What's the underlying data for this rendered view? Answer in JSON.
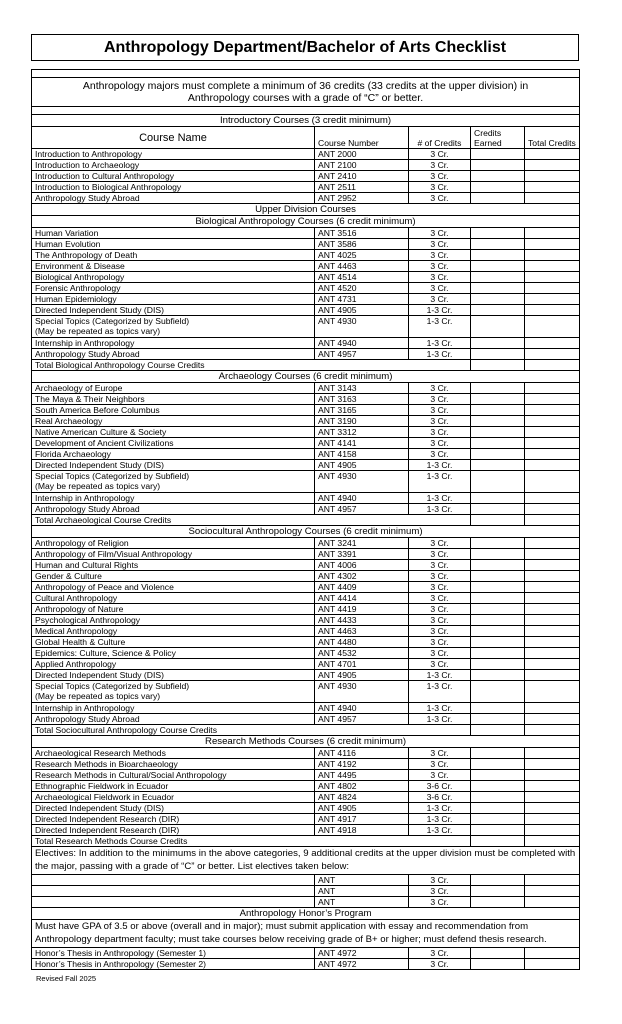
{
  "title": "Anthropology Department/Bachelor of Arts Checklist",
  "intro_text": "Anthropology majors must complete a minimum of 36 credits (33 credits at the upper division) in Anthropology courses with a grade of “C” or better.",
  "columns": {
    "name": "Course Name",
    "number": "Course Number",
    "credits": "# of Credits",
    "earned": "Credits Earned",
    "total": "Total Credits"
  },
  "introductory": {
    "heading": "Introductory Courses (3 credit minimum)",
    "courses": [
      {
        "name": "Introduction to Anthropology",
        "number": "ANT 2000",
        "credits": "3 Cr."
      },
      {
        "name": "Introduction to Archaeology",
        "number": "ANT 2100",
        "credits": "3 Cr."
      },
      {
        "name": "Introduction to Cultural Anthropology",
        "number": "ANT 2410",
        "credits": "3 Cr."
      },
      {
        "name": "Introduction to Biological Anthropology",
        "number": "ANT 2511",
        "credits": "3 Cr."
      },
      {
        "name": "Anthropology Study Abroad",
        "number": "ANT 2952",
        "credits": "3 Cr."
      }
    ]
  },
  "upper_division_heading": "Upper Division Courses",
  "sections": [
    {
      "heading": "Biological Anthropology Courses (6 credit minimum)",
      "courses": [
        {
          "name": "Human Variation",
          "number": "ANT 3516",
          "credits": "3 Cr."
        },
        {
          "name": "Human Evolution",
          "number": "ANT 3586",
          "credits": "3 Cr."
        },
        {
          "name": "The Anthropology of Death",
          "number": "ANT 4025",
          "credits": "3 Cr."
        },
        {
          "name": "Environment & Disease",
          "number": "ANT 4463",
          "credits": "3 Cr."
        },
        {
          "name": "Biological Anthropology",
          "number": "ANT 4514",
          "credits": "3 Cr."
        },
        {
          "name": "Forensic Anthropology",
          "number": "ANT 4520",
          "credits": "3 Cr."
        },
        {
          "name": "Human Epidemiology",
          "number": "ANT 4731",
          "credits": "3 Cr."
        },
        {
          "name": "Directed Independent Study (DIS)",
          "number": "ANT 4905",
          "credits": "1-3 Cr."
        },
        {
          "name": "Special Topics (Categorized by Subfield)",
          "note": "(May be repeated as topics vary)",
          "number": "ANT 4930",
          "credits": "1-3 Cr."
        },
        {
          "name": "Internship in Anthropology",
          "number": "ANT 4940",
          "credits": "1-3 Cr."
        },
        {
          "name": "Anthropology Study Abroad",
          "number": "ANT 4957",
          "credits": "1-3 Cr."
        }
      ],
      "total_label": "Total Biological Anthropology Course Credits"
    },
    {
      "heading": "Archaeology Courses (6 credit minimum)",
      "courses": [
        {
          "name": "Archaeology of Europe",
          "number": "ANT 3143",
          "credits": "3 Cr."
        },
        {
          "name": "The Maya & Their Neighbors",
          "number": "ANT 3163",
          "credits": "3 Cr."
        },
        {
          "name": "South America Before Columbus",
          "number": "ANT 3165",
          "credits": "3 Cr."
        },
        {
          "name": "Real Archaeology",
          "number": "ANT 3190",
          "credits": "3 Cr."
        },
        {
          "name": "Native American Culture & Society",
          "number": "ANT 3312",
          "credits": "3 Cr."
        },
        {
          "name": "Development of Ancient Civilizations",
          "number": "ANT 4141",
          "credits": "3 Cr."
        },
        {
          "name": "Florida Archaeology",
          "number": "ANT 4158",
          "credits": "3 Cr."
        },
        {
          "name": "Directed Independent Study (DIS)",
          "number": "ANT 4905",
          "credits": "1-3 Cr."
        },
        {
          "name": "Special Topics (Categorized by Subfield)",
          "note": "(May be repeated as topics vary)",
          "number": "ANT 4930",
          "credits": "1-3 Cr."
        },
        {
          "name": "Internship in Anthropology",
          "number": "ANT 4940",
          "credits": "1-3 Cr."
        },
        {
          "name": "Anthropology Study Abroad",
          "number": "ANT 4957",
          "credits": "1-3 Cr."
        }
      ],
      "total_label": "Total Archaeological Course Credits"
    },
    {
      "heading": "Sociocultural Anthropology Courses (6 credit minimum)",
      "courses": [
        {
          "name": "Anthropology of Religion",
          "number": "ANT 3241",
          "credits": "3 Cr."
        },
        {
          "name": "Anthropology of Film/Visual Anthropology",
          "number": "ANT 3391",
          "credits": "3 Cr."
        },
        {
          "name": "Human and Cultural Rights",
          "number": "ANT 4006",
          "credits": "3 Cr."
        },
        {
          "name": "Gender & Culture",
          "number": "ANT 4302",
          "credits": "3 Cr."
        },
        {
          "name": "Anthropology of Peace and Violence",
          "number": "ANT 4409",
          "credits": "3 Cr."
        },
        {
          "name": "Cultural Anthropology",
          "number": "ANT 4414",
          "credits": "3 Cr."
        },
        {
          "name": "Anthropology of Nature",
          "number": "ANT 4419",
          "credits": "3 Cr."
        },
        {
          "name": "Psychological Anthropology",
          "number": "ANT 4433",
          "credits": "3 Cr."
        },
        {
          "name": "Medical Anthropology",
          "number": "ANT 4463",
          "credits": "3 Cr."
        },
        {
          "name": "Global Health & Culture",
          "number": "ANT 4480",
          "credits": "3 Cr."
        },
        {
          "name": "Epidemics: Culture, Science & Policy",
          "number": "ANT 4532",
          "credits": "3 Cr."
        },
        {
          "name": "Applied Anthropology",
          "number": "ANT 4701",
          "credits": "3 Cr."
        },
        {
          "name": "Directed Independent Study (DIS)",
          "number": "ANT 4905",
          "credits": "1-3 Cr."
        },
        {
          "name": "Special Topics (Categorized by Subfield)",
          "note": "(May be repeated as topics vary)",
          "number": "ANT 4930",
          "credits": "1-3 Cr."
        },
        {
          "name": "Internship in Anthropology",
          "number": "ANT 4940",
          "credits": "1-3 Cr."
        },
        {
          "name": "Anthropology Study Abroad",
          "number": "ANT 4957",
          "credits": "1-3 Cr."
        }
      ],
      "total_label": "Total Sociocultural Anthropology Course Credits"
    },
    {
      "heading": "Research Methods Courses (6 credit minimum)",
      "courses": [
        {
          "name": "Archaeological Research Methods",
          "number": "ANT 4116",
          "credits": "3 Cr."
        },
        {
          "name": "Research Methods in Bioarchaeology",
          "number": "ANT 4192",
          "credits": "3 Cr."
        },
        {
          "name": "Research Methods in Cultural/Social Anthropology",
          "number": "ANT 4495",
          "credits": "3 Cr."
        },
        {
          "name": "Ethnographic Fieldwork in Ecuador",
          "number": "ANT 4802",
          "credits": "3-6 Cr."
        },
        {
          "name": "Archaeological Fieldwork in Ecuador",
          "number": "ANT 4824",
          "credits": "3-6 Cr."
        },
        {
          "name": "Directed Independent Study (DIS)",
          "number": "ANT 4905",
          "credits": "1-3 Cr."
        },
        {
          "name": "Directed Independent Research (DIR)",
          "number": "ANT 4917",
          "credits": "1-3 Cr."
        },
        {
          "name": "Directed Independent Research (DIR)",
          "number": "ANT 4918",
          "credits": "1-3 Cr."
        }
      ],
      "total_label": "Total Research Methods Course Credits"
    }
  ],
  "electives": {
    "text": "Electives:  In addition to the minimums in the above categories, 9 additional credits at the upper division must be completed with the major, passing with a grade of “C” or better.  List electives taken below:",
    "rows": [
      {
        "number": "ANT",
        "credits": "3 Cr."
      },
      {
        "number": "ANT",
        "credits": "3 Cr."
      },
      {
        "number": "ANT",
        "credits": "3 Cr."
      }
    ]
  },
  "honors": {
    "heading": "Anthropology Honor’s Program",
    "text": "Must have GPA of 3.5 or above (overall and in major); must submit application with essay and recommendation from Anthropology department faculty; must take courses below receiving grade of B+ or higher; must defend thesis research.",
    "courses": [
      {
        "name": "Honor’s Thesis in Anthropology (Semester 1)",
        "number": "ANT 4972",
        "credits": "3 Cr."
      },
      {
        "name": "Honor’s Thesis in Anthropology (Semester 2)",
        "number": "ANT 4972",
        "credits": "3 Cr."
      }
    ]
  },
  "footer": "Revised Fall 2025"
}
